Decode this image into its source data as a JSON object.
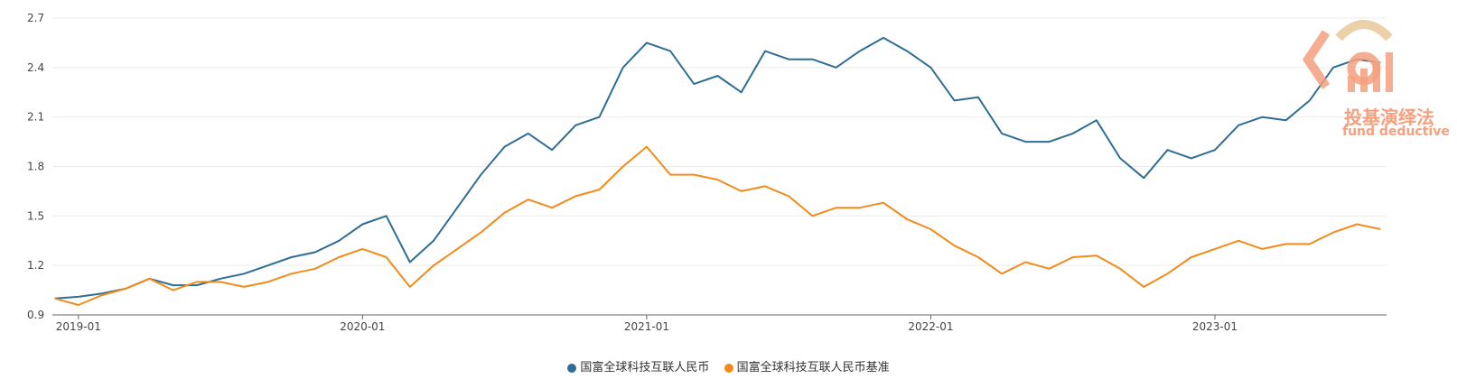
{
  "chart_data": {
    "type": "line",
    "ylim": [
      0.9,
      2.7
    ],
    "yticks": [
      "0.9",
      "1.2",
      "1.5",
      "1.8",
      "2.1",
      "2.4",
      "2.7"
    ],
    "xtick_labels": [
      "2019-01",
      "2020-01",
      "2021-01",
      "2022-01",
      "2023-01"
    ],
    "x_range": [
      "2018-12",
      "2023-08"
    ],
    "grid": true,
    "legend_position": "bottom-center",
    "series": [
      {
        "name": "国富全球科技互联人民币",
        "color": "#2d6e94",
        "points": [
          [
            "2018-12",
            1.0
          ],
          [
            "2019-01",
            1.01
          ],
          [
            "2019-02",
            1.03
          ],
          [
            "2019-03",
            1.06
          ],
          [
            "2019-04",
            1.12
          ],
          [
            "2019-05",
            1.08
          ],
          [
            "2019-06",
            1.08
          ],
          [
            "2019-07",
            1.12
          ],
          [
            "2019-08",
            1.15
          ],
          [
            "2019-09",
            1.2
          ],
          [
            "2019-10",
            1.25
          ],
          [
            "2019-11",
            1.28
          ],
          [
            "2019-12",
            1.35
          ],
          [
            "2020-01",
            1.45
          ],
          [
            "2020-02",
            1.5
          ],
          [
            "2020-03",
            1.22
          ],
          [
            "2020-04",
            1.35
          ],
          [
            "2020-05",
            1.55
          ],
          [
            "2020-06",
            1.75
          ],
          [
            "2020-07",
            1.92
          ],
          [
            "2020-08",
            2.0
          ],
          [
            "2020-09",
            1.9
          ],
          [
            "2020-10",
            2.05
          ],
          [
            "2020-11",
            2.1
          ],
          [
            "2020-12",
            2.4
          ],
          [
            "2021-01",
            2.55
          ],
          [
            "2021-02",
            2.5
          ],
          [
            "2021-03",
            2.3
          ],
          [
            "2021-04",
            2.35
          ],
          [
            "2021-05",
            2.25
          ],
          [
            "2021-06",
            2.5
          ],
          [
            "2021-07",
            2.45
          ],
          [
            "2021-08",
            2.45
          ],
          [
            "2021-09",
            2.4
          ],
          [
            "2021-10",
            2.5
          ],
          [
            "2021-11",
            2.58
          ],
          [
            "2021-12",
            2.5
          ],
          [
            "2022-01",
            2.4
          ],
          [
            "2022-02",
            2.2
          ],
          [
            "2022-03",
            2.22
          ],
          [
            "2022-04",
            2.0
          ],
          [
            "2022-05",
            1.95
          ],
          [
            "2022-06",
            1.95
          ],
          [
            "2022-07",
            2.0
          ],
          [
            "2022-08",
            2.08
          ],
          [
            "2022-09",
            1.85
          ],
          [
            "2022-10",
            1.73
          ],
          [
            "2022-11",
            1.9
          ],
          [
            "2022-12",
            1.85
          ],
          [
            "2023-01",
            1.9
          ],
          [
            "2023-02",
            2.05
          ],
          [
            "2023-03",
            2.1
          ],
          [
            "2023-04",
            2.08
          ],
          [
            "2023-05",
            2.2
          ],
          [
            "2023-06",
            2.4
          ],
          [
            "2023-07",
            2.45
          ],
          [
            "2023-08",
            2.43
          ]
        ]
      },
      {
        "name": "国富全球科技互联人民币基准",
        "color": "#f28b1c",
        "points": [
          [
            "2018-12",
            1.0
          ],
          [
            "2019-01",
            0.96
          ],
          [
            "2019-02",
            1.02
          ],
          [
            "2019-03",
            1.06
          ],
          [
            "2019-04",
            1.12
          ],
          [
            "2019-05",
            1.05
          ],
          [
            "2019-06",
            1.1
          ],
          [
            "2019-07",
            1.1
          ],
          [
            "2019-08",
            1.07
          ],
          [
            "2019-09",
            1.1
          ],
          [
            "2019-10",
            1.15
          ],
          [
            "2019-11",
            1.18
          ],
          [
            "2019-12",
            1.25
          ],
          [
            "2020-01",
            1.3
          ],
          [
            "2020-02",
            1.25
          ],
          [
            "2020-03",
            1.07
          ],
          [
            "2020-04",
            1.2
          ],
          [
            "2020-05",
            1.3
          ],
          [
            "2020-06",
            1.4
          ],
          [
            "2020-07",
            1.52
          ],
          [
            "2020-08",
            1.6
          ],
          [
            "2020-09",
            1.55
          ],
          [
            "2020-10",
            1.62
          ],
          [
            "2020-11",
            1.66
          ],
          [
            "2020-12",
            1.8
          ],
          [
            "2021-01",
            1.92
          ],
          [
            "2021-02",
            1.75
          ],
          [
            "2021-03",
            1.75
          ],
          [
            "2021-04",
            1.72
          ],
          [
            "2021-05",
            1.65
          ],
          [
            "2021-06",
            1.68
          ],
          [
            "2021-07",
            1.62
          ],
          [
            "2021-08",
            1.5
          ],
          [
            "2021-09",
            1.55
          ],
          [
            "2021-10",
            1.55
          ],
          [
            "2021-11",
            1.58
          ],
          [
            "2021-12",
            1.48
          ],
          [
            "2022-01",
            1.42
          ],
          [
            "2022-02",
            1.32
          ],
          [
            "2022-03",
            1.25
          ],
          [
            "2022-04",
            1.15
          ],
          [
            "2022-05",
            1.22
          ],
          [
            "2022-06",
            1.18
          ],
          [
            "2022-07",
            1.25
          ],
          [
            "2022-08",
            1.26
          ],
          [
            "2022-09",
            1.18
          ],
          [
            "2022-10",
            1.07
          ],
          [
            "2022-11",
            1.15
          ],
          [
            "2022-12",
            1.25
          ],
          [
            "2023-01",
            1.3
          ],
          [
            "2023-02",
            1.35
          ],
          [
            "2023-03",
            1.3
          ],
          [
            "2023-04",
            1.33
          ],
          [
            "2023-05",
            1.33
          ],
          [
            "2023-06",
            1.4
          ],
          [
            "2023-07",
            1.45
          ],
          [
            "2023-08",
            1.42
          ]
        ]
      }
    ]
  },
  "watermark": {
    "text_cn": "投基演绎法",
    "text_en": "fund deductive",
    "color": "#f4a07f"
  }
}
